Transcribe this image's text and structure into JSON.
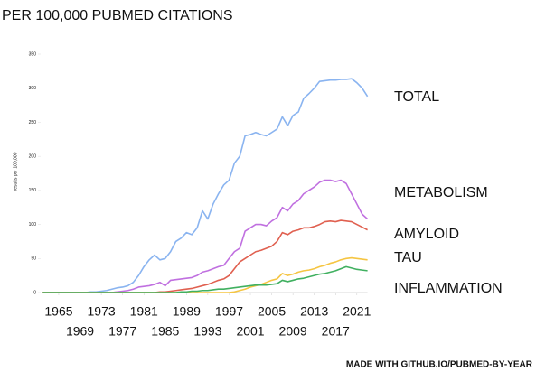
{
  "chart_data": {
    "type": "line",
    "title": "PER 100,000 PUBMED CITATIONS",
    "y_label": "results per 100,000",
    "note": "MADE WITH GITHUB.IO/PUBMED-BY-YEAR",
    "x": [
      1962,
      1963,
      1964,
      1965,
      1966,
      1967,
      1968,
      1969,
      1970,
      1971,
      1972,
      1973,
      1974,
      1975,
      1976,
      1977,
      1978,
      1979,
      1980,
      1981,
      1982,
      1983,
      1984,
      1985,
      1986,
      1987,
      1988,
      1989,
      1990,
      1991,
      1992,
      1993,
      1994,
      1995,
      1996,
      1997,
      1998,
      1999,
      2000,
      2001,
      2002,
      2003,
      2004,
      2005,
      2006,
      2007,
      2008,
      2009,
      2010,
      2011,
      2012,
      2013,
      2014,
      2015,
      2016,
      2017,
      2018,
      2019,
      2020,
      2021,
      2022,
      2023
    ],
    "xlim": [
      1962,
      2023
    ],
    "xticks": [
      1965,
      1969,
      1973,
      1977,
      1981,
      1985,
      1989,
      1993,
      1997,
      2001,
      2005,
      2009,
      2013,
      2017,
      2021
    ],
    "ylim": [
      0,
      350
    ],
    "yticks": [
      0,
      50,
      100,
      150,
      200,
      250,
      300,
      350
    ],
    "grid": false,
    "series": [
      {
        "name": "TOTAL",
        "color": "#8ab4f0",
        "values": [
          0,
          0,
          0,
          0,
          0,
          0,
          0,
          0,
          0,
          1,
          1,
          2,
          3,
          5,
          7,
          8,
          10,
          15,
          25,
          38,
          48,
          55,
          48,
          50,
          60,
          75,
          80,
          88,
          85,
          95,
          120,
          108,
          130,
          145,
          158,
          165,
          190,
          200,
          230,
          232,
          235,
          232,
          230,
          235,
          240,
          258,
          245,
          260,
          265,
          285,
          292,
          300,
          310,
          311,
          312,
          312,
          313,
          313,
          314,
          308,
          300,
          288
        ]
      },
      {
        "name": "METABOLISM",
        "color": "#c070e0",
        "values": [
          0,
          0,
          0,
          0,
          0,
          0,
          0,
          0,
          0,
          0,
          0,
          0,
          0,
          0,
          1,
          2,
          3,
          5,
          8,
          9,
          10,
          12,
          15,
          10,
          18,
          19,
          20,
          21,
          22,
          25,
          30,
          32,
          35,
          38,
          40,
          50,
          60,
          65,
          90,
          95,
          100,
          100,
          98,
          105,
          110,
          125,
          120,
          130,
          135,
          145,
          150,
          155,
          162,
          165,
          165,
          163,
          165,
          160,
          145,
          130,
          115,
          108
        ]
      },
      {
        "name": "AMYLOID",
        "color": "#e06050",
        "values": [
          0,
          0,
          0,
          0,
          0,
          0,
          0,
          0,
          0,
          0,
          0,
          0,
          0,
          0,
          0,
          0,
          0,
          0,
          0,
          0,
          0,
          0,
          1,
          1,
          2,
          3,
          4,
          5,
          6,
          8,
          10,
          12,
          15,
          18,
          20,
          25,
          35,
          45,
          50,
          55,
          60,
          62,
          65,
          68,
          75,
          88,
          85,
          90,
          92,
          95,
          95,
          97,
          100,
          104,
          105,
          104,
          106,
          105,
          104,
          100,
          96,
          92
        ]
      },
      {
        "name": "TAU",
        "color": "#f5c542",
        "values": [
          0,
          0,
          0,
          0,
          0,
          0,
          0,
          0,
          0,
          0,
          0,
          0,
          0,
          0,
          0,
          0,
          0,
          0,
          0,
          0,
          0,
          0,
          0,
          0,
          0,
          0,
          0,
          0,
          0,
          0,
          0,
          0,
          0,
          0,
          0,
          0,
          1,
          3,
          5,
          8,
          10,
          12,
          15,
          18,
          20,
          28,
          25,
          27,
          30,
          32,
          33,
          35,
          38,
          40,
          43,
          45,
          48,
          50,
          51,
          50,
          49,
          48
        ]
      },
      {
        "name": "INFLAMMATION",
        "color": "#40b060",
        "values": [
          0,
          0,
          0,
          0,
          0,
          0,
          0,
          0,
          0,
          0,
          0,
          0,
          0,
          0,
          0,
          0,
          0,
          0,
          0,
          0,
          0,
          0,
          0,
          0,
          0,
          0,
          1,
          1,
          2,
          2,
          3,
          3,
          4,
          5,
          5,
          6,
          7,
          8,
          9,
          10,
          11,
          11,
          11,
          12,
          13,
          18,
          16,
          18,
          20,
          21,
          23,
          25,
          27,
          28,
          30,
          32,
          35,
          38,
          36,
          34,
          33,
          32
        ]
      }
    ]
  }
}
